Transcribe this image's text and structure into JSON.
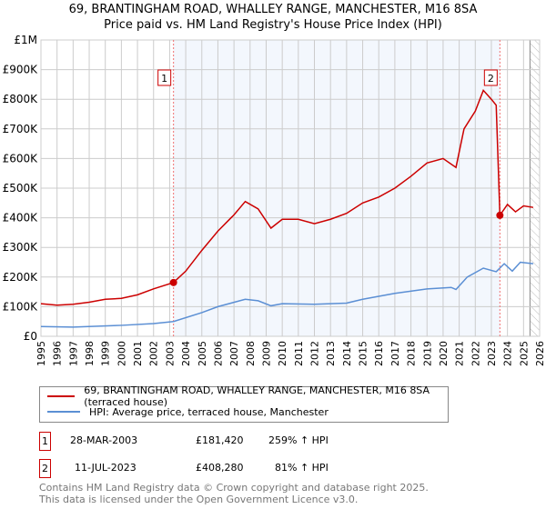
{
  "chart_data": {
    "type": "line",
    "title": "69, BRANTINGHAM ROAD, WHALLEY RANGE, MANCHESTER, M16 8SA",
    "subtitle": "Price paid vs. HM Land Registry's House Price Index (HPI)",
    "xlim": [
      1995,
      2026
    ],
    "ylim": [
      0,
      1000000
    ],
    "x_ticks": [
      "1995",
      "1996",
      "1997",
      "1998",
      "1999",
      "2000",
      "2001",
      "2002",
      "2003",
      "2004",
      "2005",
      "2006",
      "2007",
      "2008",
      "2009",
      "2010",
      "2011",
      "2012",
      "2013",
      "2014",
      "2015",
      "2016",
      "2017",
      "2018",
      "2019",
      "2020",
      "2021",
      "2022",
      "2023",
      "2024",
      "2025",
      "2026"
    ],
    "y_ticks": [
      {
        "v": 0,
        "l": "£0"
      },
      {
        "v": 100000,
        "l": "£100K"
      },
      {
        "v": 200000,
        "l": "£200K"
      },
      {
        "v": 300000,
        "l": "£300K"
      },
      {
        "v": 400000,
        "l": "£400K"
      },
      {
        "v": 500000,
        "l": "£500K"
      },
      {
        "v": 600000,
        "l": "£600K"
      },
      {
        "v": 700000,
        "l": "£700K"
      },
      {
        "v": 800000,
        "l": "£800K"
      },
      {
        "v": 900000,
        "l": "£900K"
      },
      {
        "v": 1000000,
        "l": "£1M"
      }
    ],
    "grid": true,
    "shaded_range": [
      2003.24,
      2023.53
    ],
    "projection_from": 2025.4,
    "series": [
      {
        "name": "69, BRANTINGHAM ROAD, WHALLEY RANGE, MANCHESTER, M16 8SA (terraced house)",
        "color": "#cc0000",
        "x": [
          1995,
          1996,
          1997,
          1998,
          1999,
          2000,
          2001,
          2002,
          2003.24,
          2004,
          2005,
          2006,
          2007,
          2007.7,
          2008.5,
          2009.3,
          2010,
          2011,
          2012,
          2013,
          2014,
          2015,
          2016,
          2017,
          2018,
          2019,
          2020,
          2020.8,
          2021.3,
          2022,
          2022.5,
          2023,
          2023.3,
          2023.53,
          2024,
          2024.5,
          2025,
          2025.6
        ],
        "y": [
          110000,
          105000,
          108000,
          115000,
          125000,
          128000,
          140000,
          160000,
          181420,
          220000,
          290000,
          355000,
          410000,
          455000,
          430000,
          365000,
          395000,
          395000,
          380000,
          395000,
          415000,
          450000,
          470000,
          500000,
          540000,
          585000,
          600000,
          570000,
          700000,
          760000,
          830000,
          800000,
          780000,
          408280,
          445000,
          420000,
          440000,
          435000
        ]
      },
      {
        "name": "HPI: Average price, terraced house, Manchester",
        "color": "#5b8fd4",
        "x": [
          1995,
          1997,
          2000,
          2002,
          2003.24,
          2005,
          2006,
          2007.7,
          2008.5,
          2009.3,
          2010,
          2012,
          2014,
          2015,
          2017,
          2019,
          2020.5,
          2020.8,
          2021.5,
          2022.5,
          2023.3,
          2023.8,
          2024.3,
          2024.8,
          2025.6
        ],
        "y": [
          33000,
          31000,
          37000,
          43000,
          50000,
          80000,
          100000,
          125000,
          120000,
          103000,
          110000,
          108000,
          112000,
          125000,
          145000,
          160000,
          165000,
          158000,
          200000,
          230000,
          218000,
          245000,
          220000,
          250000,
          245000
        ]
      }
    ],
    "sales": [
      {
        "n": "1",
        "x": 2003.24,
        "y": 181420,
        "date": "28-MAR-2003",
        "price": "£181,420",
        "hpi": "259% ↑ HPI"
      },
      {
        "n": "2",
        "x": 2023.53,
        "y": 408280,
        "date": "11-JUL-2023",
        "price": "£408,280",
        "hpi": "81% ↑ HPI"
      }
    ]
  },
  "legend": {
    "property": "69, BRANTINGHAM ROAD, WHALLEY RANGE, MANCHESTER, M16 8SA (terraced house)",
    "hpi": "HPI: Average price, terraced house, Manchester"
  },
  "footer": {
    "line1": "Contains HM Land Registry data © Crown copyright and database right 2025.",
    "line2": "This data is licensed under the Open Government Licence v3.0."
  }
}
